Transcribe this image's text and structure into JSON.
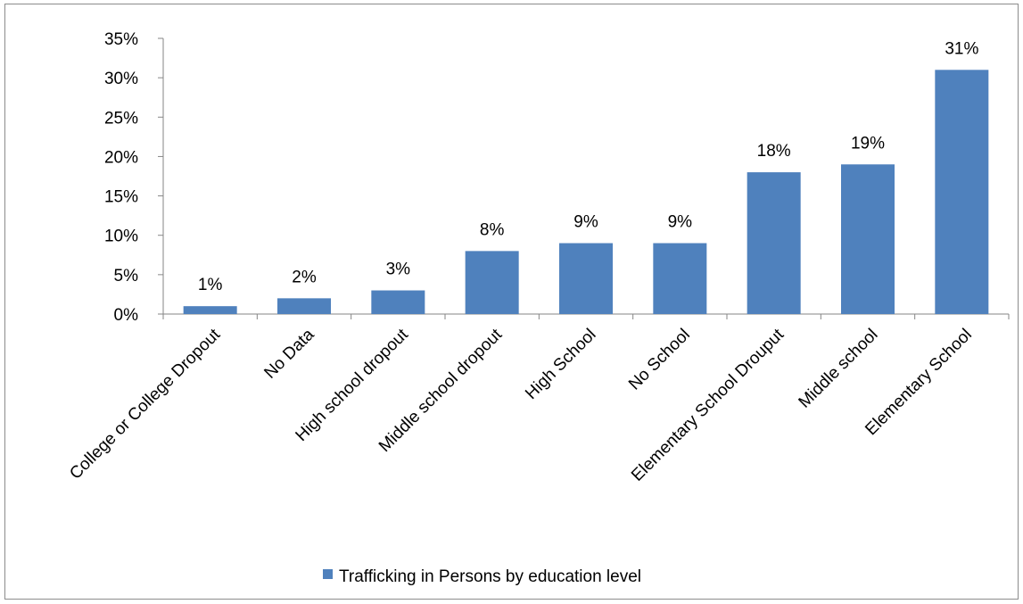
{
  "chart_data": {
    "type": "bar",
    "categories": [
      "College or College Dropout",
      "No Data",
      "High school dropout",
      "Middle  school dropout",
      "High School",
      "No School",
      "Elementary School Drouput",
      "Middle school",
      "Elementary School"
    ],
    "series": [
      {
        "name": "Trafficking in Persons by education level",
        "values": [
          1,
          2,
          3,
          8,
          9,
          9,
          18,
          19,
          31
        ],
        "data_labels": [
          "1%",
          "2%",
          "3%",
          "8%",
          "9%",
          "9%",
          "18%",
          "19%",
          "31%"
        ],
        "color": "#4f81bd"
      }
    ],
    "title": "",
    "xlabel": "",
    "ylabel": "",
    "ylim": [
      0,
      35
    ],
    "yticks": [
      0,
      5,
      10,
      15,
      20,
      25,
      30,
      35
    ],
    "ytick_labels": [
      "0%",
      "5%",
      "10%",
      "15%",
      "20%",
      "25%",
      "30%",
      "35%"
    ],
    "grid": false,
    "legend": {
      "position": "bottom",
      "entries": [
        "Trafficking in Persons by education level"
      ]
    }
  }
}
